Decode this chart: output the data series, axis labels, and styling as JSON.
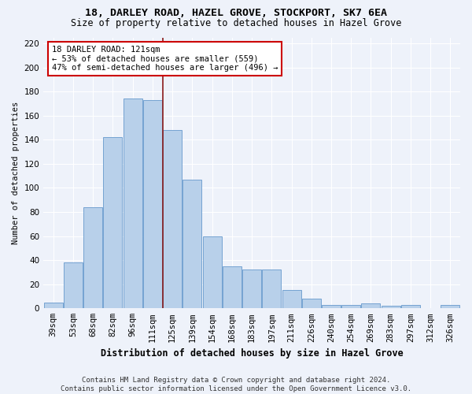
{
  "title1": "18, DARLEY ROAD, HAZEL GROVE, STOCKPORT, SK7 6EA",
  "title2": "Size of property relative to detached houses in Hazel Grove",
  "xlabel": "Distribution of detached houses by size in Hazel Grove",
  "ylabel": "Number of detached properties",
  "categories": [
    "39sqm",
    "53sqm",
    "68sqm",
    "82sqm",
    "96sqm",
    "111sqm",
    "125sqm",
    "139sqm",
    "154sqm",
    "168sqm",
    "183sqm",
    "197sqm",
    "211sqm",
    "226sqm",
    "240sqm",
    "254sqm",
    "269sqm",
    "283sqm",
    "297sqm",
    "312sqm",
    "326sqm"
  ],
  "values": [
    5,
    38,
    84,
    142,
    174,
    173,
    148,
    107,
    60,
    35,
    32,
    32,
    15,
    8,
    3,
    3,
    4,
    2,
    3,
    0,
    3
  ],
  "bar_color": "#b8d0ea",
  "bar_edge_color": "#6699cc",
  "property_label": "18 DARLEY ROAD: 121sqm",
  "annotation_line1": "← 53% of detached houses are smaller (559)",
  "annotation_line2": "47% of semi-detached houses are larger (496) →",
  "vline_color": "#8b1a1a",
  "annotation_box_edge": "#cc0000",
  "background_color": "#eef2fa",
  "footer1": "Contains HM Land Registry data © Crown copyright and database right 2024.",
  "footer2": "Contains public sector information licensed under the Open Government Licence v3.0.",
  "ylim": [
    0,
    225
  ],
  "yticks": [
    0,
    20,
    40,
    60,
    80,
    100,
    120,
    140,
    160,
    180,
    200,
    220
  ],
  "title1_fontsize": 9.5,
  "title2_fontsize": 8.5,
  "xlabel_fontsize": 8.5,
  "ylabel_fontsize": 7.5,
  "tick_fontsize": 7.5,
  "footer_fontsize": 6.5,
  "annot_fontsize": 7.5,
  "vline_x": 5.5
}
